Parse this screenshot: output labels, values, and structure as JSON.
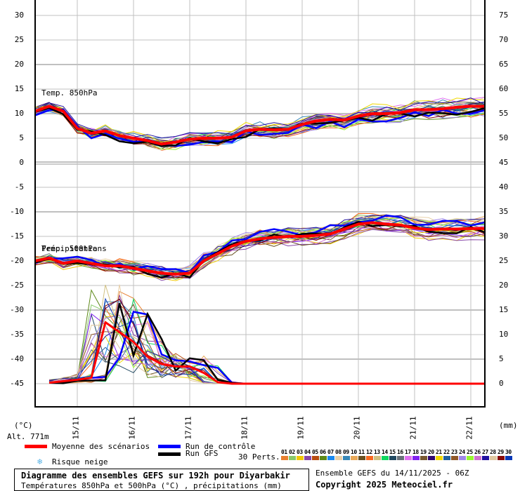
{
  "chart_data": {
    "type": "line",
    "title": "Diagramme des ensembles GEFS sur 192h pour Diyarbakir",
    "subtitle": "Températures 850hPa et 500hPa (°C) , précipitations (mm)",
    "run_info": "Ensemble GEFS du 14/11/2025 - 06Z",
    "copyright": "Copyright 2025 Meteociel.fr",
    "altitude": "Alt. 771m",
    "x_tick_labels": [
      "15/11",
      "16/11",
      "17/11",
      "18/11",
      "19/11",
      "20/11",
      "21/11",
      "22/11"
    ],
    "x_step_hours": 6,
    "left_axis": {
      "unit": "(°C)",
      "ticks": [
        30,
        25,
        20,
        15,
        10,
        5,
        0,
        -5,
        -10,
        -15,
        -20,
        -25,
        -30,
        -35,
        -40,
        -45
      ]
    },
    "right_axis": {
      "unit": "(mm)",
      "ticks_top": [
        75,
        70,
        65,
        60,
        55,
        50,
        45
      ],
      "ticks_bottom": [
        40,
        35,
        30,
        25,
        20,
        15,
        10,
        5,
        0
      ]
    },
    "panel_labels": {
      "t850": "Temp. 850hPa",
      "t500": "Temp. 500hPa",
      "precip": "Précipitations"
    },
    "series": [
      {
        "name": "Moyenne des scénarios T850",
        "color": "#ff0000",
        "values": [
          10.5,
          11.5,
          10.5,
          7,
          6,
          6.5,
          5.5,
          5,
          4.5,
          3.8,
          4.2,
          4.8,
          5,
          5,
          5.2,
          6.5,
          6.8,
          6.7,
          6.8,
          7.8,
          8.5,
          8.8,
          8.7,
          9.5,
          10,
          10,
          10.2,
          10.8,
          10.8,
          11,
          11.3,
          11.5,
          11.5
        ]
      },
      {
        "name": "Moyenne des scénarios T500",
        "color": "#ff0000",
        "values": [
          -20,
          -19.4,
          -20.5,
          -20,
          -20.5,
          -21,
          -21,
          -21.5,
          -22,
          -22.5,
          -22.7,
          -22.5,
          -20,
          -18.5,
          -17,
          -16,
          -15.5,
          -15.2,
          -15,
          -15,
          -14.8,
          -14.5,
          -13.5,
          -12.5,
          -12.2,
          -12.5,
          -12.7,
          -13.3,
          -13.6,
          -13.5,
          -13.5,
          -13.4,
          -13.4
        ]
      },
      {
        "name": "Moyenne des scénarios Précipitations (mm)",
        "color": "#ff0000",
        "values": [
          null,
          0.2,
          0.5,
          0.8,
          1.2,
          12.5,
          10.5,
          8.5,
          5.5,
          4,
          3.5,
          3.5,
          2.2,
          0.3,
          0,
          0,
          0,
          0,
          0,
          0,
          0,
          0,
          0,
          0,
          0,
          0,
          0,
          0,
          0,
          0,
          0,
          0,
          0
        ]
      },
      {
        "name": "Run de contrôle",
        "color": "#0000ff"
      },
      {
        "name": "Run GFS",
        "color": "#000000"
      }
    ],
    "legend": [
      {
        "label": "Moyenne des scénarios",
        "color": "#ff0000"
      },
      {
        "label": "Run de contrôle",
        "color": "#0000ff"
      },
      {
        "label": "Run GFS",
        "color": "#000000"
      },
      {
        "label": "Risque neige",
        "icon": "snowflake-icon"
      }
    ],
    "perturbations": {
      "label": "30 Perts.",
      "ids": [
        "01",
        "02",
        "03",
        "04",
        "05",
        "06",
        "07",
        "08",
        "09",
        "10",
        "11",
        "12",
        "13",
        "14",
        "15",
        "16",
        "17",
        "18",
        "19",
        "20",
        "21",
        "22",
        "23",
        "24",
        "25",
        "26",
        "27",
        "28",
        "29",
        "30"
      ],
      "colors": [
        "#e88030",
        "#88c868",
        "#f0c800",
        "#8848a8",
        "#b84c10",
        "#5c8818",
        "#1888f0",
        "#e8d0a8",
        "#3888b8",
        "#e8a858",
        "#685020",
        "#f86820",
        "#d0c080",
        "#10d860",
        "#204860",
        "#687078",
        "#e070f0",
        "#8020f0",
        "#785830",
        "#300870",
        "#f0d800",
        "#2060a0",
        "#905828",
        "#a088e8",
        "#98f830",
        "#d070d0",
        "#2010a0",
        "#e0c8a0",
        "#880808",
        "#0838b8"
      ]
    },
    "grid": true
  },
  "legend_labels": {
    "mean": "Moyenne des scénarios",
    "control": "Run de contrôle",
    "gfs": "Run GFS",
    "snow": "Risque neige",
    "perts": "30 Perts."
  },
  "colors": {
    "mean": "#ff0000",
    "control": "#0000ff",
    "gfs": "#000000",
    "grid": "#c0c0c0",
    "snow": "#5ab4e6"
  }
}
